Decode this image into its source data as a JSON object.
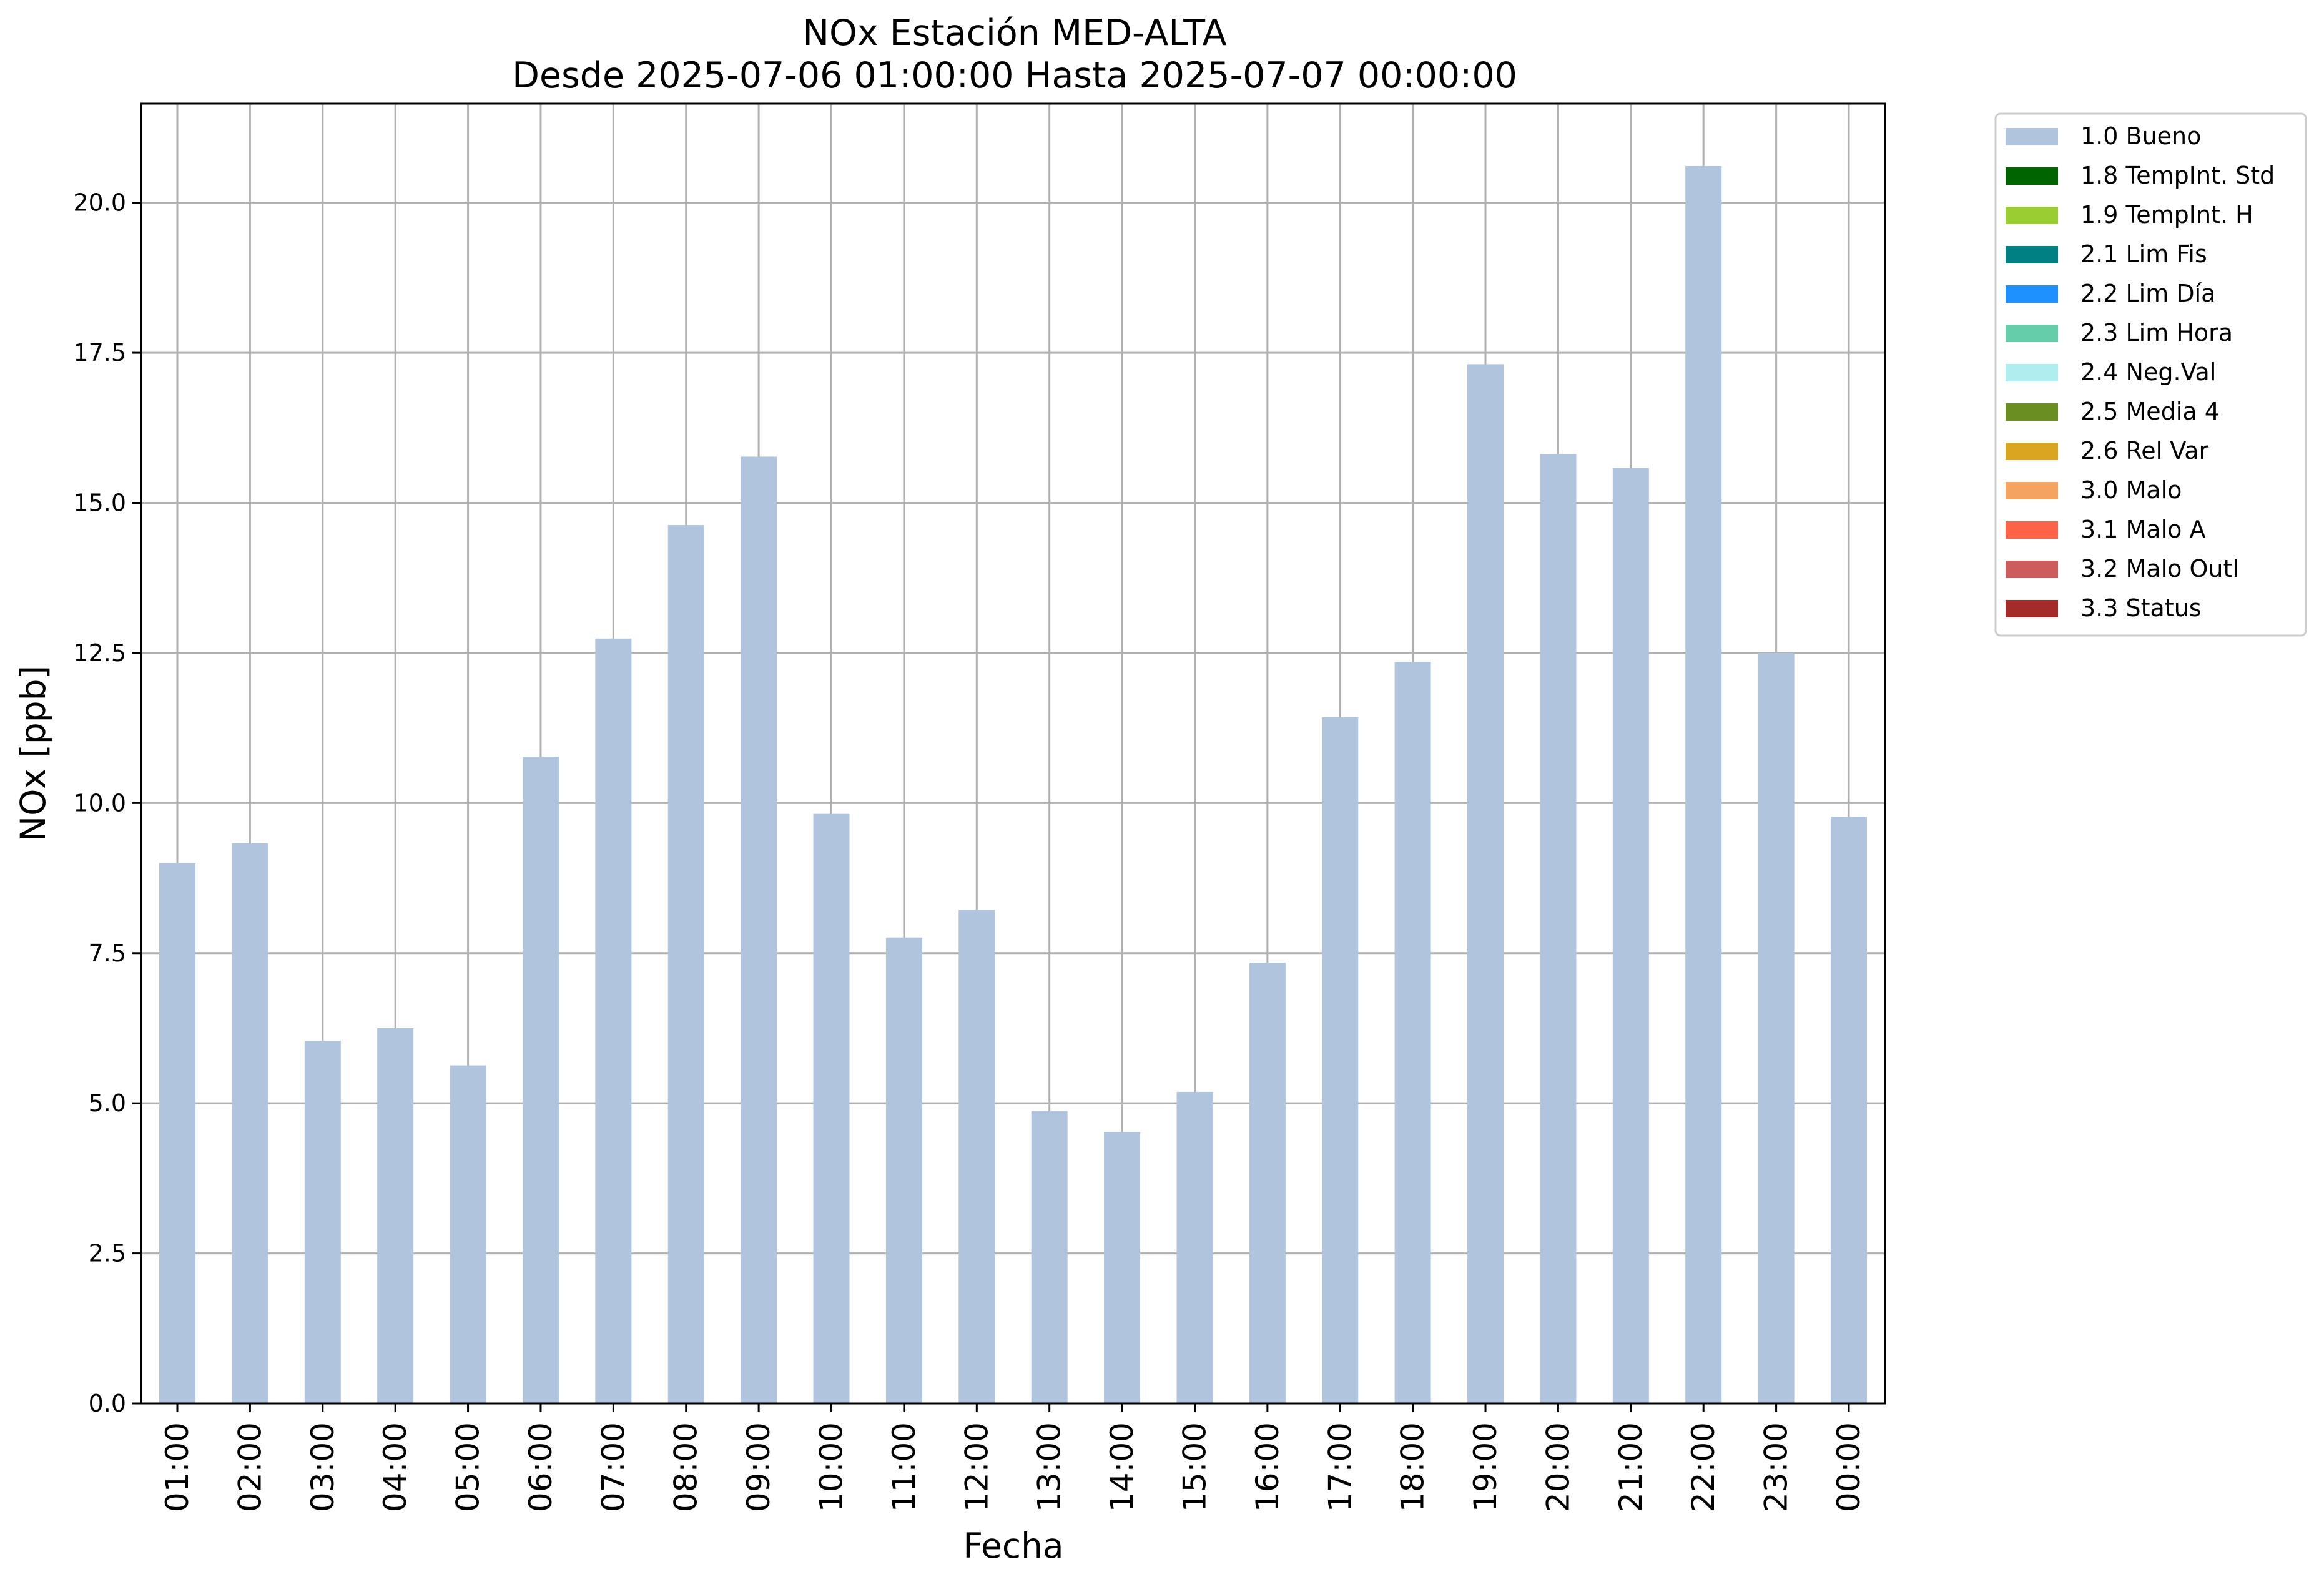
{
  "chart_data": {
    "type": "bar",
    "title": "NOx Estación MED-ALTA",
    "subtitle": "Desde 2025-07-06 01:00:00 Hasta 2025-07-07 00:00:00",
    "xlabel": "Fecha",
    "ylabel": "NOx [ppb]",
    "ylim": [
      0,
      21.65
    ],
    "yticks": [
      "0.0",
      "2.5",
      "5.0",
      "7.5",
      "10.0",
      "12.5",
      "15.0",
      "17.5",
      "20.0"
    ],
    "categories": [
      "01:00",
      "02:00",
      "03:00",
      "04:00",
      "05:00",
      "06:00",
      "07:00",
      "08:00",
      "09:00",
      "10:00",
      "11:00",
      "12:00",
      "13:00",
      "14:00",
      "15:00",
      "16:00",
      "17:00",
      "18:00",
      "19:00",
      "20:00",
      "21:00",
      "22:00",
      "23:00",
      "00:00"
    ],
    "values": [
      9.0,
      9.33,
      6.04,
      6.25,
      5.63,
      10.77,
      12.74,
      14.63,
      15.77,
      9.82,
      7.76,
      8.22,
      4.87,
      4.52,
      5.19,
      7.34,
      11.43,
      12.35,
      17.31,
      15.81,
      15.58,
      20.61,
      12.5,
      9.77
    ],
    "series_color": "#b0c4de",
    "grid": true,
    "legend_position": "outside-right-top",
    "legend": [
      {
        "label": "1.0 Bueno",
        "color": "#b0c4de"
      },
      {
        "label": "1.8 TempInt. Std",
        "color": "#006400"
      },
      {
        "label": "1.9 TempInt. H",
        "color": "#9acd32"
      },
      {
        "label": "2.1 Lim Fis",
        "color": "#008080"
      },
      {
        "label": "2.2 Lim Día",
        "color": "#1e90ff"
      },
      {
        "label": "2.3 Lim Hora",
        "color": "#66cdaa"
      },
      {
        "label": "2.4 Neg.Val",
        "color": "#afeeee"
      },
      {
        "label": "2.5 Media 4",
        "color": "#6b8e23"
      },
      {
        "label": "2.6 Rel Var",
        "color": "#daa520"
      },
      {
        "label": "3.0 Malo",
        "color": "#f4a460"
      },
      {
        "label": "3.1 Malo A",
        "color": "#ff6347"
      },
      {
        "label": "3.2 Malo Outl",
        "color": "#cd5c5c"
      },
      {
        "label": "3.3 Status",
        "color": "#a52a2a"
      }
    ]
  }
}
